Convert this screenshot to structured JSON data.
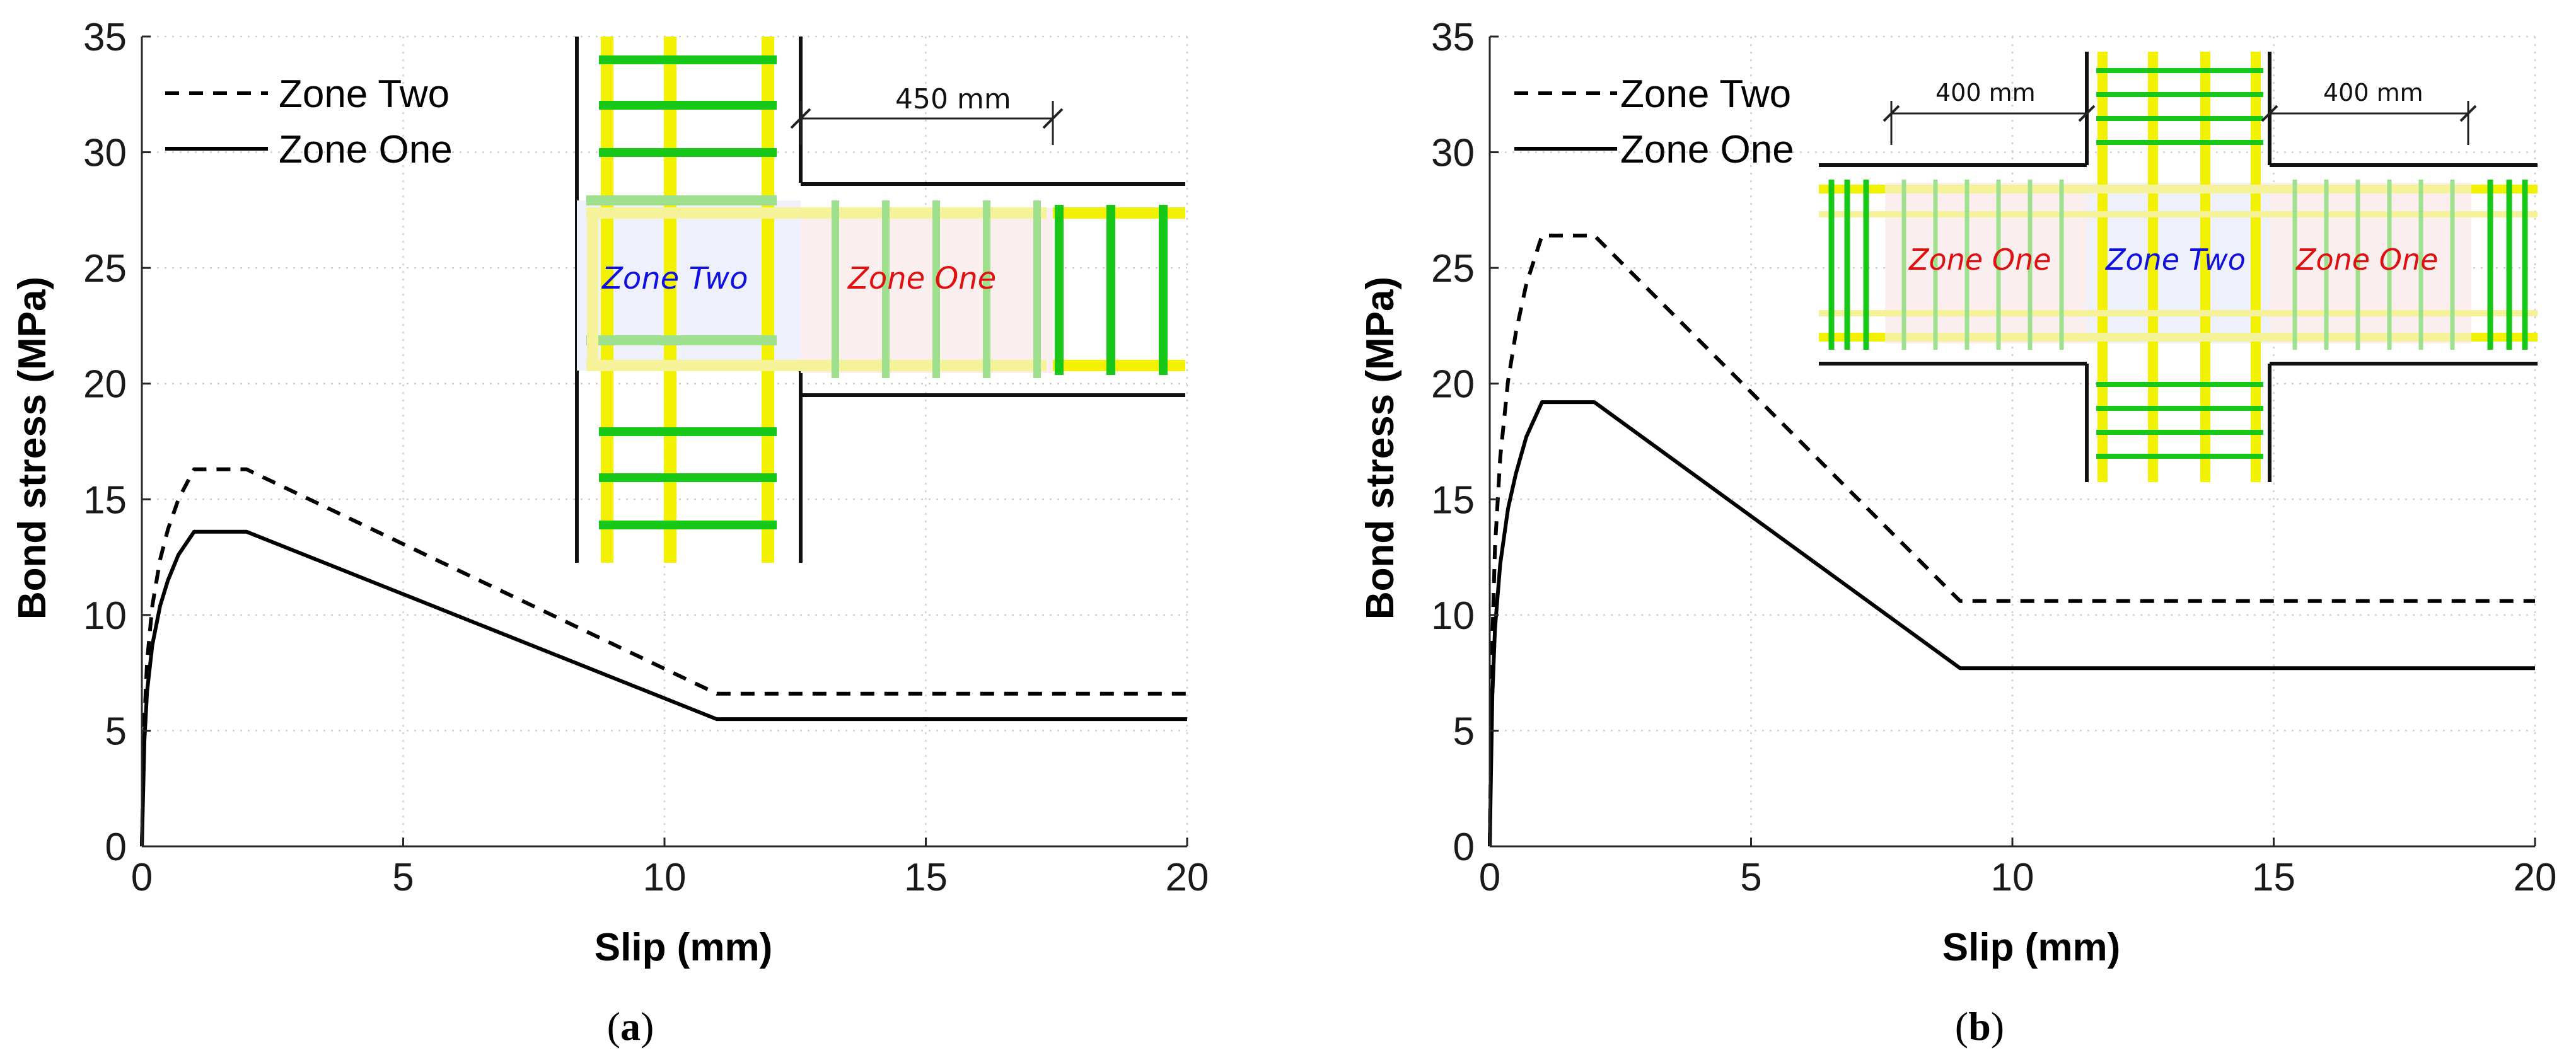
{
  "chart_data": [
    {
      "type": "line",
      "panel": "a",
      "caption": "a",
      "xlabel": "Slip  (mm)",
      "ylabel": "Bond stress  (MPa)",
      "xlim": [
        0,
        20
      ],
      "ylim": [
        0,
        35
      ],
      "xticks": [
        0,
        5,
        10,
        15,
        20
      ],
      "yticks": [
        0,
        5,
        10,
        15,
        20,
        25,
        30,
        35
      ],
      "grid": true,
      "legend_position": "top-left",
      "series": [
        {
          "name": "Zone Two",
          "style": "dashed",
          "x": [
            0,
            0.05,
            0.1,
            0.2,
            0.35,
            0.5,
            0.7,
            1.0,
            2.0,
            11.0,
            20.0
          ],
          "y": [
            0,
            5.5,
            8.0,
            10.4,
            12.4,
            13.7,
            15.0,
            16.3,
            16.3,
            6.6,
            6.6
          ]
        },
        {
          "name": "Zone One",
          "style": "solid",
          "x": [
            0,
            0.05,
            0.1,
            0.2,
            0.35,
            0.5,
            0.7,
            1.0,
            2.0,
            11.0,
            20.0
          ],
          "y": [
            0,
            4.6,
            6.7,
            8.7,
            10.4,
            11.5,
            12.6,
            13.6,
            13.6,
            5.5,
            5.5
          ]
        }
      ],
      "inset": {
        "dimension": "450 mm",
        "zone_left": "Zone Two",
        "zone_right": "Zone One"
      }
    },
    {
      "type": "line",
      "panel": "b",
      "caption": "b",
      "xlabel": "Slip  (mm)",
      "ylabel": "Bond stress  (MPa)",
      "xlim": [
        0,
        20
      ],
      "ylim": [
        0,
        35
      ],
      "xticks": [
        0,
        5,
        10,
        15,
        20
      ],
      "yticks": [
        0,
        5,
        10,
        15,
        20,
        25,
        30,
        35
      ],
      "grid": true,
      "legend_position": "top-left",
      "series": [
        {
          "name": "Zone Two",
          "style": "dashed",
          "x": [
            0,
            0.05,
            0.1,
            0.2,
            0.35,
            0.5,
            0.7,
            1.0,
            2.0,
            9.0,
            20.0
          ],
          "y": [
            0,
            8.9,
            12.9,
            16.8,
            20.1,
            22.2,
            24.3,
            26.4,
            26.4,
            10.6,
            10.6
          ]
        },
        {
          "name": "Zone One",
          "style": "solid",
          "x": [
            0,
            0.05,
            0.1,
            0.2,
            0.35,
            0.5,
            0.7,
            1.0,
            2.0,
            9.0,
            20.0
          ],
          "y": [
            0,
            6.5,
            9.4,
            12.2,
            14.6,
            16.1,
            17.7,
            19.2,
            19.2,
            7.7,
            7.7
          ]
        }
      ],
      "inset": {
        "dimension_left": "400 mm",
        "dimension_right": "400 mm",
        "zone_left": "Zone One",
        "zone_center": "Zone Two",
        "zone_right": "Zone One"
      }
    }
  ],
  "colors": {
    "zone_one_label": "#e01010",
    "zone_two_label": "#1010e0",
    "rebar_yellow": "#f2f200",
    "rebar_green": "#18c818"
  }
}
